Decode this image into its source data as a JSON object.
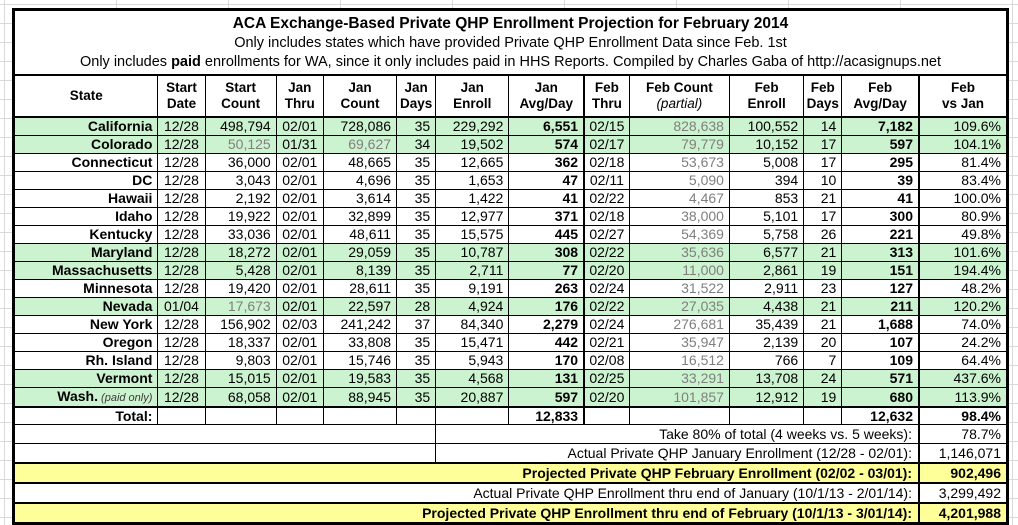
{
  "title": {
    "line1": "ACA Exchange-Based Private QHP Enrollment Projection for February 2014",
    "line2": "Only includes states which have provided Private QHP Enrollment Data since Feb. 1st",
    "line3_prefix": "Only includes ",
    "line3_bold": "paid",
    "line3_suffix": " enrollments for WA, since it only includes paid in HHS Reports. Compiled by Charles Gaba of http://acasignups.net"
  },
  "table": {
    "headers": [
      {
        "l1": "State",
        "l2": ""
      },
      {
        "l1": "Start",
        "l2": "Date"
      },
      {
        "l1": "Start",
        "l2": "Count"
      },
      {
        "l1": "Jan",
        "l2": "Thru"
      },
      {
        "l1": "Jan",
        "l2": "Count"
      },
      {
        "l1": "Jan",
        "l2": "Days"
      },
      {
        "l1": "Jan",
        "l2": "Enroll"
      },
      {
        "l1": "Jan",
        "l2": "Avg/Day"
      },
      {
        "l1": "Feb",
        "l2": "Thru"
      },
      {
        "l1": "Feb Count",
        "l2": "(partial)",
        "italic": true
      },
      {
        "l1": "Feb",
        "l2": "Enroll"
      },
      {
        "l1": "Feb",
        "l2": "Days"
      },
      {
        "l1": "Feb",
        "l2": "Avg/Day"
      },
      {
        "l1": "Feb",
        "l2": "vs Jan"
      }
    ],
    "rows": [
      {
        "state": "California",
        "green": true,
        "cells": [
          "12/28",
          "498,794",
          "02/01",
          "728,086",
          "35",
          "229,292",
          "6,551",
          "02/15",
          "828,638",
          "100,552",
          "14",
          "7,182",
          "109.6%"
        ]
      },
      {
        "state": "Colorado",
        "green": true,
        "muted": [
          1,
          3
        ],
        "cells": [
          "12/28",
          "50,125",
          "01/31",
          "69,627",
          "34",
          "19,502",
          "574",
          "02/17",
          "79,779",
          "10,152",
          "17",
          "597",
          "104.1%"
        ]
      },
      {
        "state": "Connecticut",
        "cells": [
          "12/28",
          "36,000",
          "02/01",
          "48,665",
          "35",
          "12,665",
          "362",
          "02/18",
          "53,673",
          "5,008",
          "17",
          "295",
          "81.4%"
        ]
      },
      {
        "state": "DC",
        "cells": [
          "12/28",
          "3,043",
          "02/01",
          "4,696",
          "35",
          "1,653",
          "47",
          "02/11",
          "5,090",
          "394",
          "10",
          "39",
          "83.4%"
        ]
      },
      {
        "state": "Hawaii",
        "cells": [
          "12/28",
          "2,192",
          "02/01",
          "3,614",
          "35",
          "1,422",
          "41",
          "02/22",
          "4,467",
          "853",
          "21",
          "41",
          "100.0%"
        ]
      },
      {
        "state": "Idaho",
        "cells": [
          "12/28",
          "19,922",
          "02/01",
          "32,899",
          "35",
          "12,977",
          "371",
          "02/18",
          "38,000",
          "5,101",
          "17",
          "300",
          "80.9%"
        ]
      },
      {
        "state": "Kentucky",
        "cells": [
          "12/28",
          "33,036",
          "02/01",
          "48,611",
          "35",
          "15,575",
          "445",
          "02/27",
          "54,369",
          "5,758",
          "26",
          "221",
          "49.8%"
        ]
      },
      {
        "state": "Maryland",
        "green": true,
        "cells": [
          "12/28",
          "18,272",
          "02/01",
          "29,059",
          "35",
          "10,787",
          "308",
          "02/22",
          "35,636",
          "6,577",
          "21",
          "313",
          "101.6%"
        ]
      },
      {
        "state": "Massachusetts",
        "green": true,
        "cells": [
          "12/28",
          "5,428",
          "02/01",
          "8,139",
          "35",
          "2,711",
          "77",
          "02/20",
          "11,000",
          "2,861",
          "19",
          "151",
          "194.4%"
        ]
      },
      {
        "state": "Minnesota",
        "cells": [
          "12/28",
          "19,420",
          "02/01",
          "28,611",
          "35",
          "9,191",
          "263",
          "02/24",
          "31,522",
          "2,911",
          "23",
          "127",
          "48.2%"
        ]
      },
      {
        "state": "Nevada",
        "green": true,
        "muted": [
          1
        ],
        "cells": [
          "01/04",
          "17,673",
          "02/01",
          "22,597",
          "28",
          "4,924",
          "176",
          "02/22",
          "27,035",
          "4,438",
          "21",
          "211",
          "120.2%"
        ]
      },
      {
        "state": "New York",
        "cells": [
          "12/28",
          "156,902",
          "02/03",
          "241,242",
          "37",
          "84,340",
          "2,279",
          "02/24",
          "276,681",
          "35,439",
          "21",
          "1,688",
          "74.0%"
        ]
      },
      {
        "state": "Oregon",
        "cells": [
          "12/28",
          "18,337",
          "02/01",
          "33,808",
          "35",
          "15,471",
          "442",
          "02/21",
          "35,947",
          "2,139",
          "20",
          "107",
          "24.2%"
        ]
      },
      {
        "state": "Rh. Island",
        "cells": [
          "12/28",
          "9,803",
          "02/01",
          "15,746",
          "35",
          "5,943",
          "170",
          "02/08",
          "16,512",
          "766",
          "7",
          "109",
          "64.4%"
        ]
      },
      {
        "state": "Vermont",
        "green": true,
        "cells": [
          "12/28",
          "15,015",
          "02/01",
          "19,583",
          "35",
          "4,568",
          "131",
          "02/25",
          "33,291",
          "13,708",
          "24",
          "571",
          "437.6%"
        ]
      },
      {
        "state": "Wash.",
        "note": "(paid only)",
        "green": true,
        "cells": [
          "12/28",
          "68,058",
          "02/01",
          "88,945",
          "35",
          "20,887",
          "597",
          "02/20",
          "101,857",
          "12,912",
          "19",
          "680",
          "113.9%"
        ]
      }
    ],
    "total": {
      "label": "Total:",
      "jan_avg": "12,833",
      "feb_avg": "12,632",
      "feb_vs_jan": "98.4%"
    },
    "summary": [
      {
        "label": "Take 80% of total (4 weeks vs. 5 weeks):",
        "value": "78.7%",
        "spacer": true
      },
      {
        "label": "Actual Private QHP January Enrollment (12/28 - 02/01):",
        "value": "1,146,071",
        "spacer": true
      },
      {
        "label": "Projected Private QHP February Enrollment (02/02 - 03/01):",
        "value": "902,496",
        "yellow": true
      },
      {
        "label": "Actual Private QHP Enrollment thru end of January (10/1/13 - 2/01/14):",
        "value": "3,299,492"
      },
      {
        "label": "Projected Private QHP Enrollment thru end of February (10/1/13 - 3/01/14):",
        "value": "4,201,988",
        "yellow": true
      }
    ]
  },
  "colors": {
    "green_row": "#ccf3cf",
    "yellow_row": "#ffff99",
    "muted_text": "#7f7f7f",
    "border": "#000000",
    "gridline": "#d9d9d9"
  }
}
